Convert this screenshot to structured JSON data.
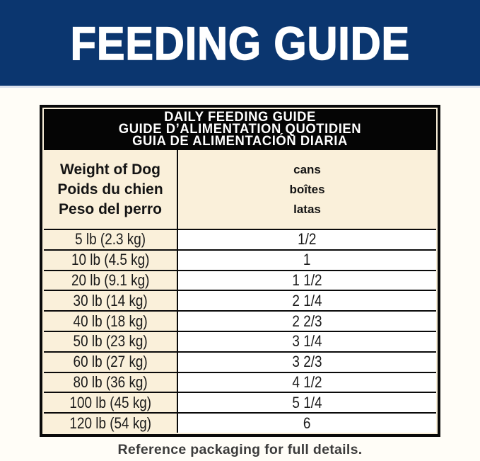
{
  "banner": {
    "title": "FEEDING GUIDE",
    "bg_color": "#0b366f",
    "text_color": "#ffffff"
  },
  "table": {
    "title_lines": [
      "DAILY FEEDING GUIDE",
      "GUIDE D’ALIMENTATION QUOTIDIEN",
      "GUIA DE ALIMENTACIÓN DIARIA"
    ],
    "columns": {
      "weight": {
        "lines": [
          "Weight of Dog",
          "Poids du chien",
          "Peso del perro"
        ]
      },
      "cans": {
        "lines": [
          "cans",
          "boîtes",
          "latas"
        ]
      }
    },
    "rows": [
      {
        "weight": "5 lb (2.3 kg)",
        "cans": "1/2"
      },
      {
        "weight": "10 lb (4.5 kg)",
        "cans": "1"
      },
      {
        "weight": "20 lb (9.1 kg)",
        "cans": "1 1/2"
      },
      {
        "weight": "30 lb (14 kg)",
        "cans": "2 1/4"
      },
      {
        "weight": "40 lb (18 kg)",
        "cans": "2 2/3"
      },
      {
        "weight": "50 lb (23 kg)",
        "cans": "3 1/4"
      },
      {
        "weight": "60 lb (27 kg)",
        "cans": "3 2/3"
      },
      {
        "weight": "80 lb (36 kg)",
        "cans": "4 1/2"
      },
      {
        "weight": "100 lb (45 kg)",
        "cans": "5 1/4"
      },
      {
        "weight": "120 lb (54 kg)",
        "cans": "6"
      }
    ],
    "colors": {
      "header_bg": "#050505",
      "header_text": "#ffffff",
      "cream_bg": "#faf0da",
      "data_cell_bg": "#ffffff",
      "grid_line": "#0a0a0a"
    }
  },
  "footer": {
    "note": "Reference packaging for full details."
  }
}
